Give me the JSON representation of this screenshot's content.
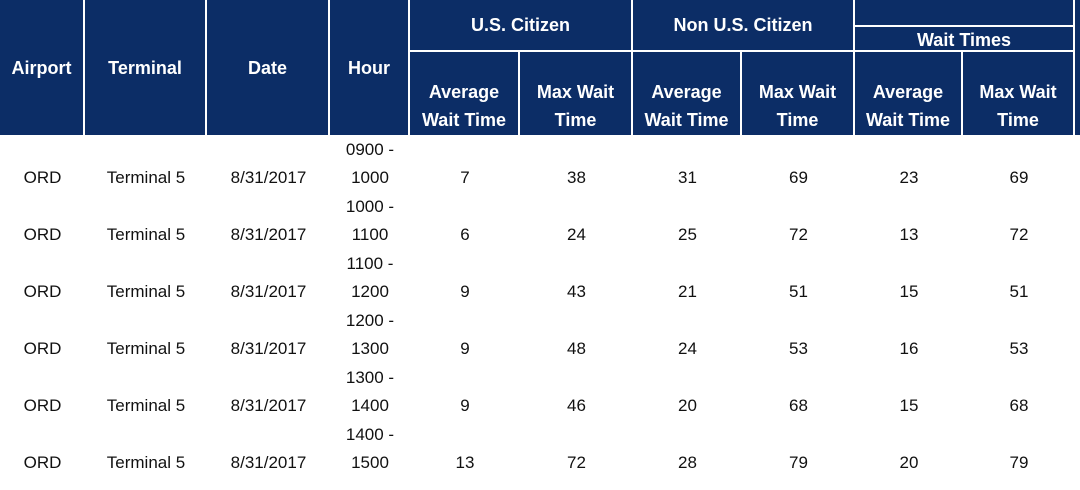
{
  "header": {
    "columns": [
      "Airport",
      "Terminal",
      "Date",
      "Hour"
    ],
    "groups": [
      {
        "title": "U.S. Citizen",
        "columns": [
          "Average Wait Time",
          "Max Wait Time"
        ]
      },
      {
        "title": "Non U.S. Citizen",
        "columns": [
          "Average Wait Time",
          "Max Wait Time"
        ]
      },
      {
        "subtitle": "Wait Times",
        "columns": [
          "Average Wait Time",
          "Max Wait Time"
        ]
      }
    ]
  },
  "table": {
    "rows": [
      [
        "ORD",
        "Terminal 5",
        "8/31/2017",
        "0900 - 1000",
        7,
        38,
        31,
        69,
        23,
        69
      ],
      [
        "ORD",
        "Terminal 5",
        "8/31/2017",
        "1000 - 1100",
        6,
        24,
        25,
        72,
        13,
        72
      ],
      [
        "ORD",
        "Terminal 5",
        "8/31/2017",
        "1100 - 1200",
        9,
        43,
        21,
        51,
        15,
        51
      ],
      [
        "ORD",
        "Terminal 5",
        "8/31/2017",
        "1200 - 1300",
        9,
        48,
        24,
        53,
        16,
        53
      ],
      [
        "ORD",
        "Terminal 5",
        "8/31/2017",
        "1300 - 1400",
        9,
        46,
        20,
        68,
        15,
        68
      ],
      [
        "ORD",
        "Terminal 5",
        "8/31/2017",
        "1400 - 1500",
        13,
        72,
        28,
        79,
        20,
        79
      ]
    ]
  }
}
